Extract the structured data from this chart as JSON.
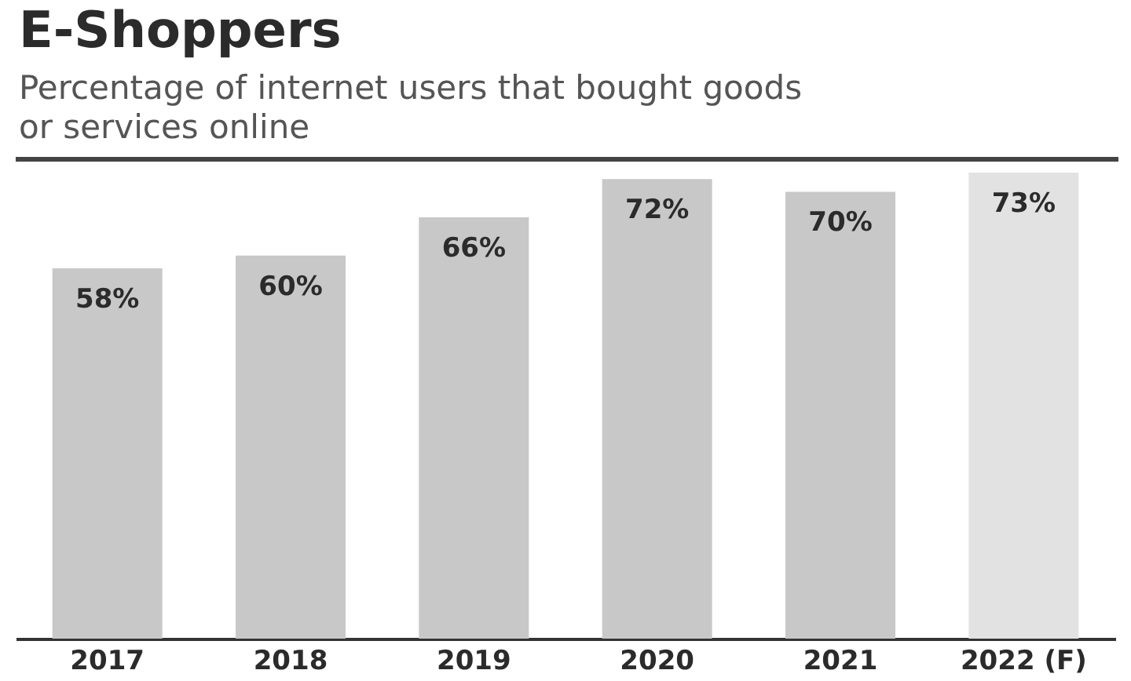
{
  "chart_data": {
    "type": "bar",
    "title": "E-Shoppers",
    "subtitle": "Percentage of internet users that bought goods or services online",
    "categories": [
      "2017",
      "2018",
      "2019",
      "2020",
      "2021",
      "2022 (F)"
    ],
    "values": [
      58,
      60,
      66,
      72,
      70,
      73
    ],
    "colors": [
      "#c8c8c8",
      "#c8c8c8",
      "#c8c8c8",
      "#c8c8c8",
      "#c8c8c8",
      "#e2e2e2"
    ],
    "value_labels": [
      "58%",
      "60%",
      "66%",
      "72%",
      "70%",
      "73%"
    ]
  }
}
